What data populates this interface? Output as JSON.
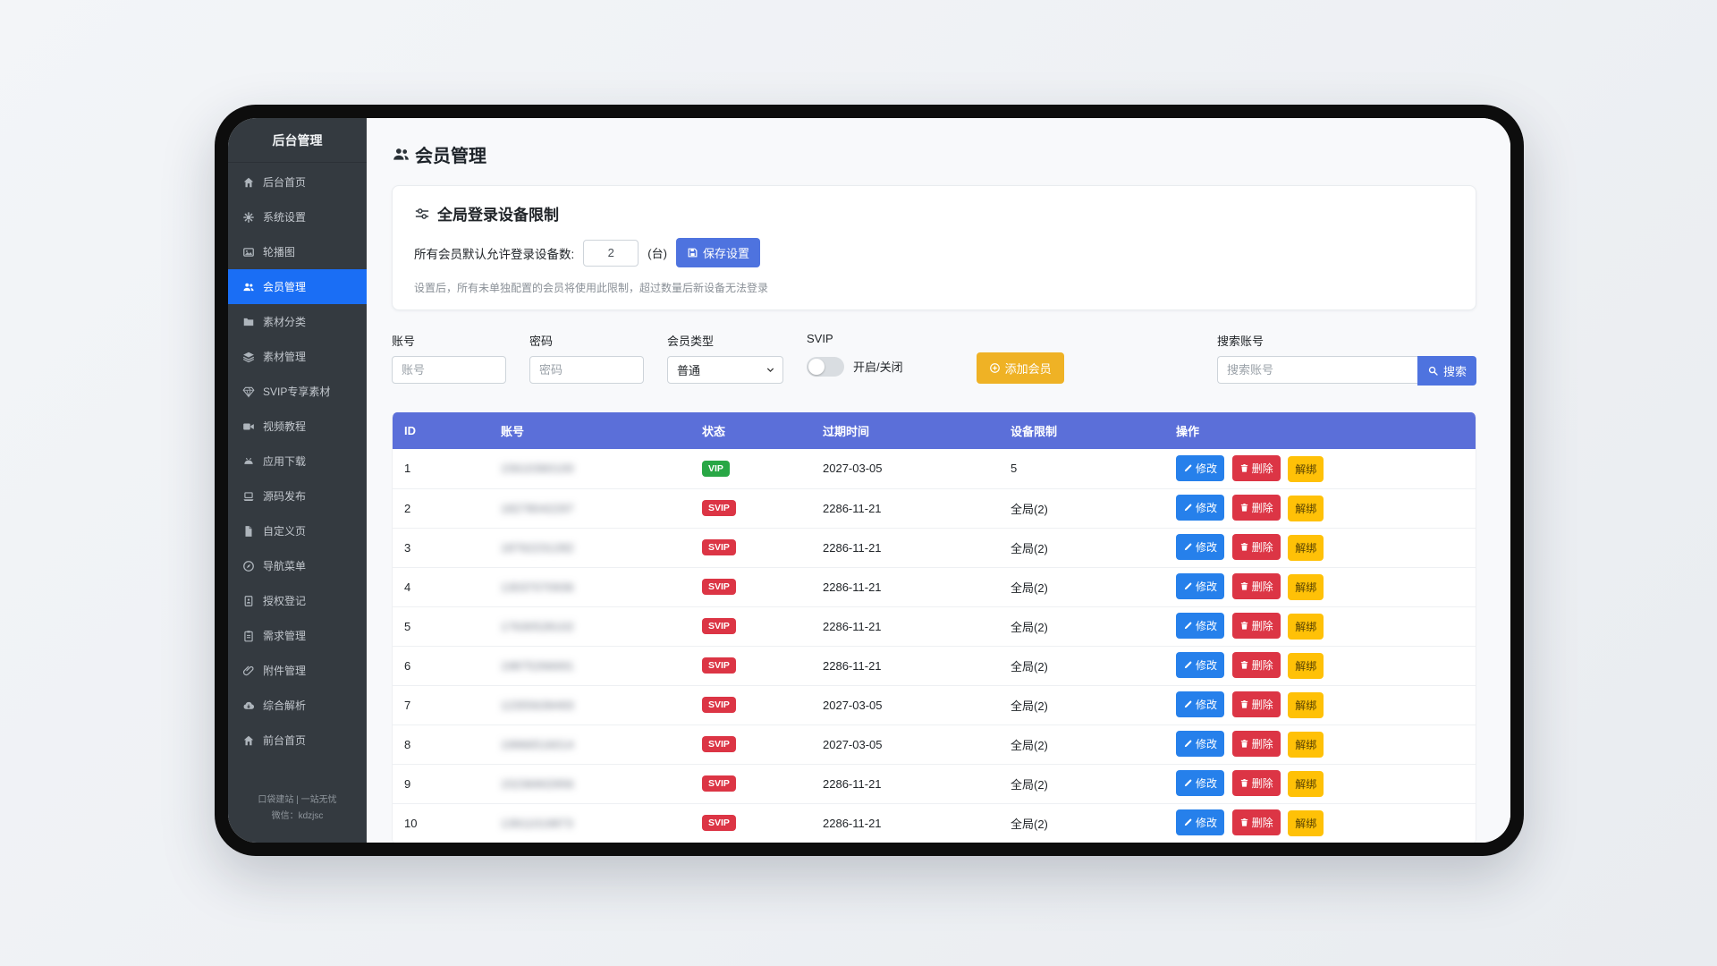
{
  "sidebar": {
    "title": "后台管理",
    "items": [
      {
        "key": "dashboard",
        "icon": "home-icon",
        "label": "后台首页",
        "active": false
      },
      {
        "key": "system-settings",
        "icon": "gears-icon",
        "label": "系统设置",
        "active": false
      },
      {
        "key": "carousel",
        "icon": "images-icon",
        "label": "轮播图",
        "active": false
      },
      {
        "key": "members",
        "icon": "users-icon",
        "label": "会员管理",
        "active": true
      },
      {
        "key": "material-category",
        "icon": "folder-icon",
        "label": "素材分类",
        "active": false
      },
      {
        "key": "material-management",
        "icon": "layers-icon",
        "label": "素材管理",
        "active": false
      },
      {
        "key": "svip-material",
        "icon": "gem-icon",
        "label": "SVIP专享素材",
        "active": false
      },
      {
        "key": "video-tutorials",
        "icon": "video-icon",
        "label": "视频教程",
        "active": false
      },
      {
        "key": "app-download",
        "icon": "android-icon",
        "label": "应用下载",
        "active": false
      },
      {
        "key": "source-release",
        "icon": "laptop-icon",
        "label": "源码发布",
        "active": false
      },
      {
        "key": "custom-page",
        "icon": "file-icon",
        "label": "自定义页",
        "active": false
      },
      {
        "key": "nav-menu",
        "icon": "compass-icon",
        "label": "导航菜单",
        "active": false
      },
      {
        "key": "license-register",
        "icon": "id-card-icon",
        "label": "授权登记",
        "active": false
      },
      {
        "key": "demand-management",
        "icon": "clipboard-icon",
        "label": "需求管理",
        "active": false
      },
      {
        "key": "attachment-management",
        "icon": "paperclip-icon",
        "label": "附件管理",
        "active": false
      },
      {
        "key": "integrated-parsing",
        "icon": "cloud-download-icon",
        "label": "综合解析",
        "active": false
      },
      {
        "key": "front-home",
        "icon": "home-icon",
        "label": "前台首页",
        "active": false
      }
    ],
    "footer": {
      "line1": "口袋建站 | 一站无忧",
      "line2": "微信：kdzjsc"
    }
  },
  "page": {
    "title": "会员管理",
    "title_icon": "users-icon"
  },
  "device_limit": {
    "icon": "sliders-icon",
    "title": "全局登录设备限制",
    "label": "所有会员默认允许登录设备数:",
    "value": "2",
    "unit": "(台)",
    "save_icon": "save-icon",
    "save_button": "保存设置",
    "note": "设置后，所有未单独配置的会员将使用此限制，超过数量后新设备无法登录"
  },
  "filters": {
    "account": {
      "label": "账号",
      "placeholder": "账号"
    },
    "password": {
      "label": "密码",
      "placeholder": "密码"
    },
    "member_type": {
      "label": "会员类型",
      "value": "普通",
      "icon": "chevron-down-icon"
    },
    "svip": {
      "label": "SVIP",
      "toggle_text": "开启/关闭",
      "state": "off"
    },
    "add_icon": "plus-circle-icon",
    "add_button": "添加会员",
    "search": {
      "label": "搜索账号",
      "placeholder": "搜索账号",
      "icon": "search-icon",
      "button": "搜索"
    }
  },
  "table": {
    "headers": [
      "ID",
      "账号",
      "状态",
      "过期时间",
      "设备限制",
      "操作"
    ],
    "actions": {
      "edit_icon": "pencil-icon",
      "edit": "修改",
      "delete_icon": "trash-icon",
      "delete": "删除",
      "unbind": "解绑"
    },
    "account_blurred": true,
    "rows": [
      {
        "id": "1",
        "account": "15610360100",
        "status": "VIP",
        "expire": "2027-03-05",
        "device_limit": "5"
      },
      {
        "id": "2",
        "account": "18278042297",
        "status": "SVIP",
        "expire": "2286-11-21",
        "device_limit": "全局(2)"
      },
      {
        "id": "3",
        "account": "18762231282",
        "status": "SVIP",
        "expire": "2286-11-21",
        "device_limit": "全局(2)"
      },
      {
        "id": "4",
        "account": "13037070936",
        "status": "SVIP",
        "expire": "2286-11-21",
        "device_limit": "全局(2)"
      },
      {
        "id": "5",
        "account": "17630528102",
        "status": "SVIP",
        "expire": "2286-11-21",
        "device_limit": "全局(2)"
      },
      {
        "id": "6",
        "account": "19875266691",
        "status": "SVIP",
        "expire": "2286-11-21",
        "device_limit": "全局(2)"
      },
      {
        "id": "7",
        "account": "12355639493",
        "status": "SVIP",
        "expire": "2027-03-05",
        "device_limit": "全局(2)"
      },
      {
        "id": "8",
        "account": "19966516014",
        "status": "SVIP",
        "expire": "2027-03-05",
        "device_limit": "全局(2)"
      },
      {
        "id": "9",
        "account": "15236902956",
        "status": "SVIP",
        "expire": "2286-11-21",
        "device_limit": "全局(2)"
      },
      {
        "id": "10",
        "account": "13911019873",
        "status": "SVIP",
        "expire": "2286-11-21",
        "device_limit": "全局(2)"
      }
    ]
  },
  "colors": {
    "sidebar_bg": "#343a40",
    "active_item_bg": "#1a6ef5",
    "table_header_bg": "#5b6fd9",
    "vip_badge": "#28a745",
    "svip_badge": "#dc3545",
    "edit_button": "#2680eb",
    "delete_button": "#dc3545",
    "unbind_button": "#ffc107",
    "add_button": "#efb225",
    "save_button": "#4e73df",
    "search_button": "#4e73df"
  }
}
